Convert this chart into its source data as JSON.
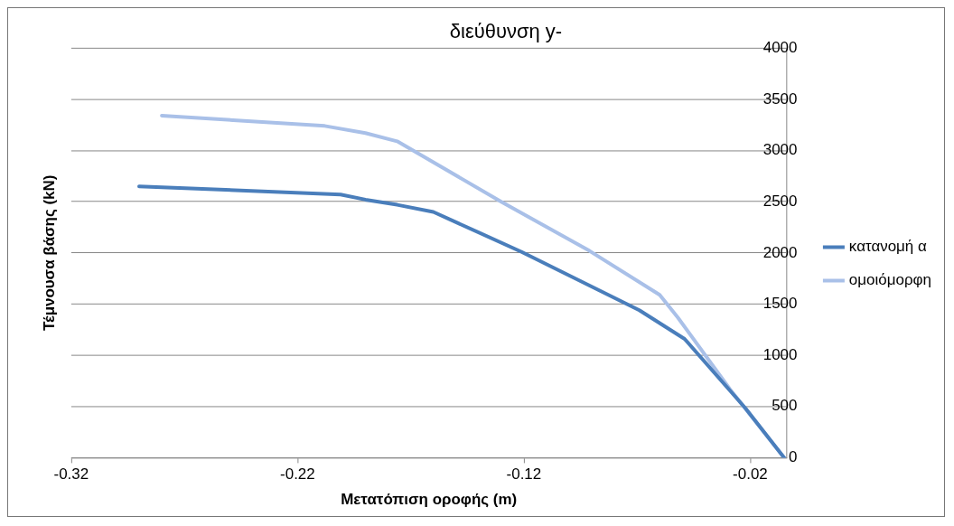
{
  "chart_data": {
    "type": "line",
    "title": "διεύθυνση y-",
    "xlabel": "Μετατόπιση οροφής (m)",
    "ylabel": "Τέμνουσα βάσης (kN)",
    "xlim": [
      -0.32,
      -0.004
    ],
    "xticks": [
      -0.32,
      -0.22,
      -0.12,
      -0.02
    ],
    "ylim": [
      0,
      4000
    ],
    "yticks": [
      0,
      500,
      1000,
      1500,
      2000,
      2500,
      3000,
      3500,
      4000
    ],
    "grid": "y",
    "legend": "right",
    "marker": "none",
    "line_style": "solid",
    "series": [
      {
        "name": "κατανομή α",
        "color": "#4a7ebb",
        "x": [
          -0.29,
          -0.201,
          -0.19,
          -0.176,
          -0.16,
          -0.121,
          -0.069,
          -0.049,
          -0.022,
          -0.005
        ],
        "values": [
          2650,
          2570,
          2520,
          2470,
          2400,
          2010,
          1440,
          1160,
          480,
          0
        ]
      },
      {
        "name": "ομοιόμορφη",
        "color": "#a9c0e8",
        "x": [
          -0.28,
          -0.208,
          -0.19,
          -0.176,
          -0.13,
          -0.091,
          -0.06,
          -0.052,
          -0.029,
          -0.005
        ],
        "values": [
          3340,
          3240,
          3170,
          3090,
          2500,
          2020,
          1590,
          1370,
          670,
          0
        ]
      }
    ]
  }
}
